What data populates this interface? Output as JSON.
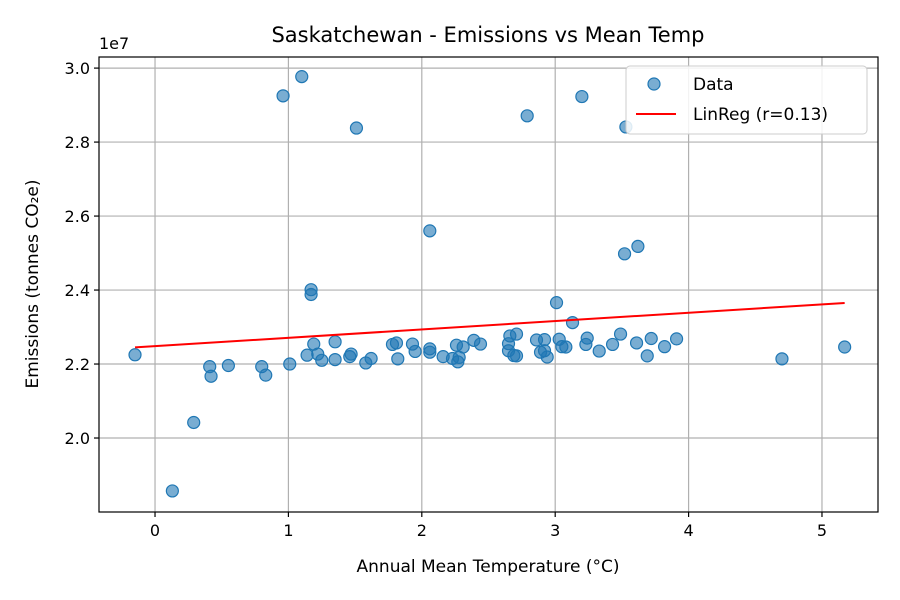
{
  "chart_data": {
    "type": "scatter",
    "title": "Saskatchewan - Emissions vs Mean Temp",
    "xlabel": "Annual Mean Temperature (°C)",
    "ylabel": "Emissions (tonnes CO₂e)",
    "y_offset_text": "1e7",
    "xlim": [
      -0.42,
      5.42
    ],
    "ylim": [
      1.8,
      3.03
    ],
    "x_ticks": [
      0,
      1,
      2,
      3,
      4,
      5
    ],
    "x_tick_labels": [
      "0",
      "1",
      "2",
      "3",
      "4",
      "5"
    ],
    "y_ticks": [
      2.0,
      2.2,
      2.4,
      2.6,
      2.8,
      3.0
    ],
    "y_tick_labels": [
      "2.0",
      "2.2",
      "2.4",
      "2.6",
      "2.8",
      "3.0"
    ],
    "grid": true,
    "legend_position": "top-right",
    "colors": {
      "points": "#1f77b4",
      "line": "#ff0000"
    },
    "series": [
      {
        "name": "Data",
        "kind": "scatter",
        "points": [
          [
            -0.15,
            2.225
          ],
          [
            0.13,
            1.857
          ],
          [
            0.29,
            2.042
          ],
          [
            0.41,
            2.193
          ],
          [
            0.42,
            2.167
          ],
          [
            0.55,
            2.196
          ],
          [
            0.8,
            2.193
          ],
          [
            0.83,
            2.17
          ],
          [
            0.96,
            2.925
          ],
          [
            1.01,
            2.2
          ],
          [
            1.1,
            2.977
          ],
          [
            1.14,
            2.224
          ],
          [
            1.17,
            2.401
          ],
          [
            1.17,
            2.388
          ],
          [
            1.19,
            2.254
          ],
          [
            1.22,
            2.227
          ],
          [
            1.25,
            2.21
          ],
          [
            1.35,
            2.212
          ],
          [
            1.35,
            2.26
          ],
          [
            1.46,
            2.22
          ],
          [
            1.47,
            2.227
          ],
          [
            1.51,
            2.838
          ],
          [
            1.58,
            2.203
          ],
          [
            1.62,
            2.215
          ],
          [
            1.78,
            2.253
          ],
          [
            1.81,
            2.257
          ],
          [
            1.82,
            2.214
          ],
          [
            1.93,
            2.254
          ],
          [
            1.95,
            2.234
          ],
          [
            2.06,
            2.56
          ],
          [
            2.06,
            2.241
          ],
          [
            2.06,
            2.232
          ],
          [
            2.16,
            2.22
          ],
          [
            2.23,
            2.215
          ],
          [
            2.26,
            2.251
          ],
          [
            2.27,
            2.206
          ],
          [
            2.28,
            2.218
          ],
          [
            2.31,
            2.246
          ],
          [
            2.39,
            2.264
          ],
          [
            2.44,
            2.254
          ],
          [
            2.65,
            2.255
          ],
          [
            2.65,
            2.236
          ],
          [
            2.66,
            2.276
          ],
          [
            2.69,
            2.223
          ],
          [
            2.71,
            2.281
          ],
          [
            2.71,
            2.222
          ],
          [
            2.79,
            2.871
          ],
          [
            2.86,
            2.265
          ],
          [
            2.89,
            2.232
          ],
          [
            2.92,
            2.236
          ],
          [
            2.92,
            2.266
          ],
          [
            2.94,
            2.219
          ],
          [
            3.01,
            2.366
          ],
          [
            3.03,
            2.267
          ],
          [
            3.05,
            2.247
          ],
          [
            3.08,
            2.246
          ],
          [
            3.13,
            2.312
          ],
          [
            3.2,
            2.923
          ],
          [
            3.23,
            2.253
          ],
          [
            3.24,
            2.27
          ],
          [
            3.33,
            2.235
          ],
          [
            3.43,
            2.253
          ],
          [
            3.49,
            2.281
          ],
          [
            3.52,
            2.498
          ],
          [
            3.53,
            2.841
          ],
          [
            3.61,
            2.257
          ],
          [
            3.62,
            2.518
          ],
          [
            3.69,
            2.222
          ],
          [
            3.72,
            2.269
          ],
          [
            3.82,
            2.247
          ],
          [
            3.91,
            2.268
          ],
          [
            4.7,
            2.214
          ],
          [
            5.17,
            2.246
          ]
        ]
      },
      {
        "name": "LinReg (r=0.13)",
        "kind": "line",
        "points": [
          [
            -0.15,
            2.245
          ],
          [
            5.17,
            2.365
          ]
        ]
      }
    ]
  }
}
